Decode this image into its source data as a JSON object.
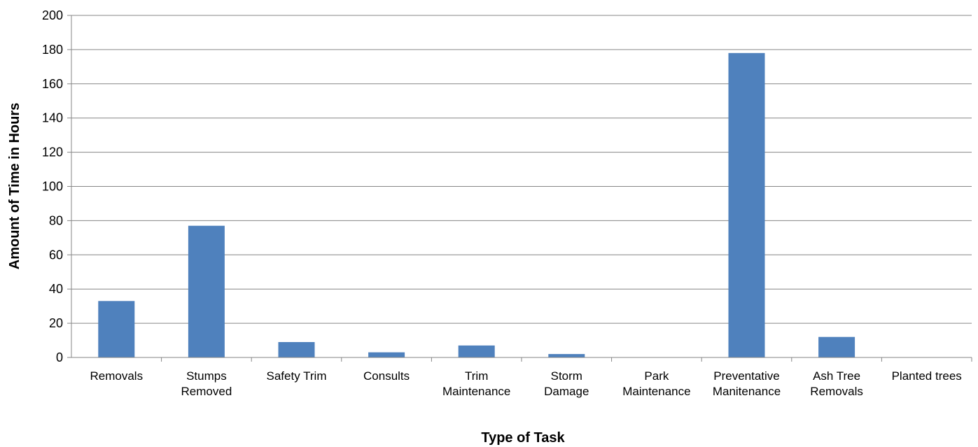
{
  "chart_data": {
    "type": "bar",
    "title": "",
    "xlabel": "Type of Task",
    "ylabel": "Amount of Time in Hours",
    "ylim": [
      0,
      200
    ],
    "yticks": [
      0,
      20,
      40,
      60,
      80,
      100,
      120,
      140,
      160,
      180,
      200
    ],
    "grid": true,
    "legend": "none",
    "bar_color": "#4f81bd",
    "categories": [
      [
        "Removals"
      ],
      [
        "Stumps",
        "Removed"
      ],
      [
        "Safety Trim"
      ],
      [
        "Consults"
      ],
      [
        "Trim",
        "Maintenance"
      ],
      [
        "Storm",
        "Damage"
      ],
      [
        "Park",
        "Maintenance"
      ],
      [
        "Preventative",
        "Manitenance"
      ],
      [
        "Ash Tree",
        "Removals"
      ],
      [
        "Planted trees"
      ]
    ],
    "values": [
      33,
      77,
      9,
      3,
      7,
      2,
      0,
      178,
      12,
      0
    ]
  }
}
